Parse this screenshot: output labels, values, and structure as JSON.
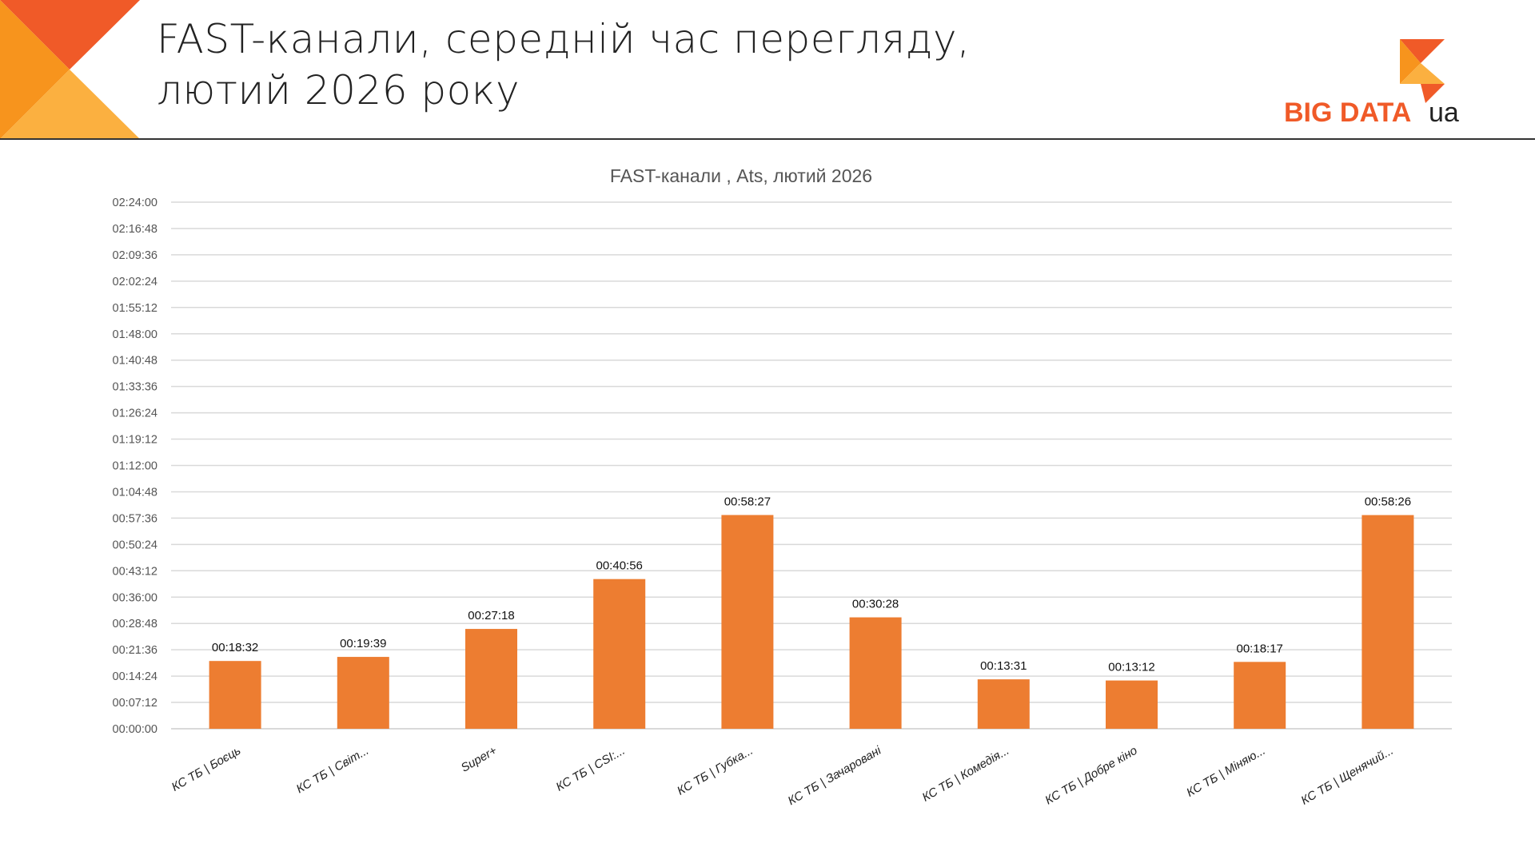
{
  "header": {
    "title_line1": "FAST-канали, середній час перегляду,",
    "title_line2": "лютий 2026 року",
    "logo_text": "BIG DATA ua"
  },
  "colors": {
    "bar": "#ED7D31",
    "grid": "#D9D9D9",
    "accent_dark": "#F05A28",
    "accent_light": "#FBB040"
  },
  "chart_data": {
    "type": "bar",
    "title": "FAST-канали , Ats, лютий 2026",
    "xlabel": "",
    "ylabel": "",
    "ylim": [
      "00:00:00",
      "02:24:00"
    ],
    "yticks": [
      "00:00:00",
      "00:07:12",
      "00:14:24",
      "00:21:36",
      "00:28:48",
      "00:36:00",
      "00:43:12",
      "00:50:24",
      "00:57:36",
      "01:04:48",
      "01:12:00",
      "01:19:12",
      "01:26:24",
      "01:33:36",
      "01:40:48",
      "01:48:00",
      "01:55:12",
      "02:02:24",
      "02:09:36",
      "02:16:48",
      "02:24:00"
    ],
    "grid": true,
    "categories": [
      "КС ТБ | Боєць",
      "КС ТБ | Світ...",
      "Super+",
      "КС ТБ | CSI:...",
      "КС ТБ | Губка...",
      "КС ТБ | Зачаровані",
      "КС ТБ | Комедія...",
      "КС ТБ | Добре кіно",
      "КС ТБ | Міняю...",
      "КС ТБ | Щенячий..."
    ],
    "values": [
      "00:18:32",
      "00:19:39",
      "00:27:18",
      "00:40:56",
      "00:58:27",
      "00:30:28",
      "00:13:31",
      "00:13:12",
      "00:18:17",
      "00:58:26"
    ]
  }
}
